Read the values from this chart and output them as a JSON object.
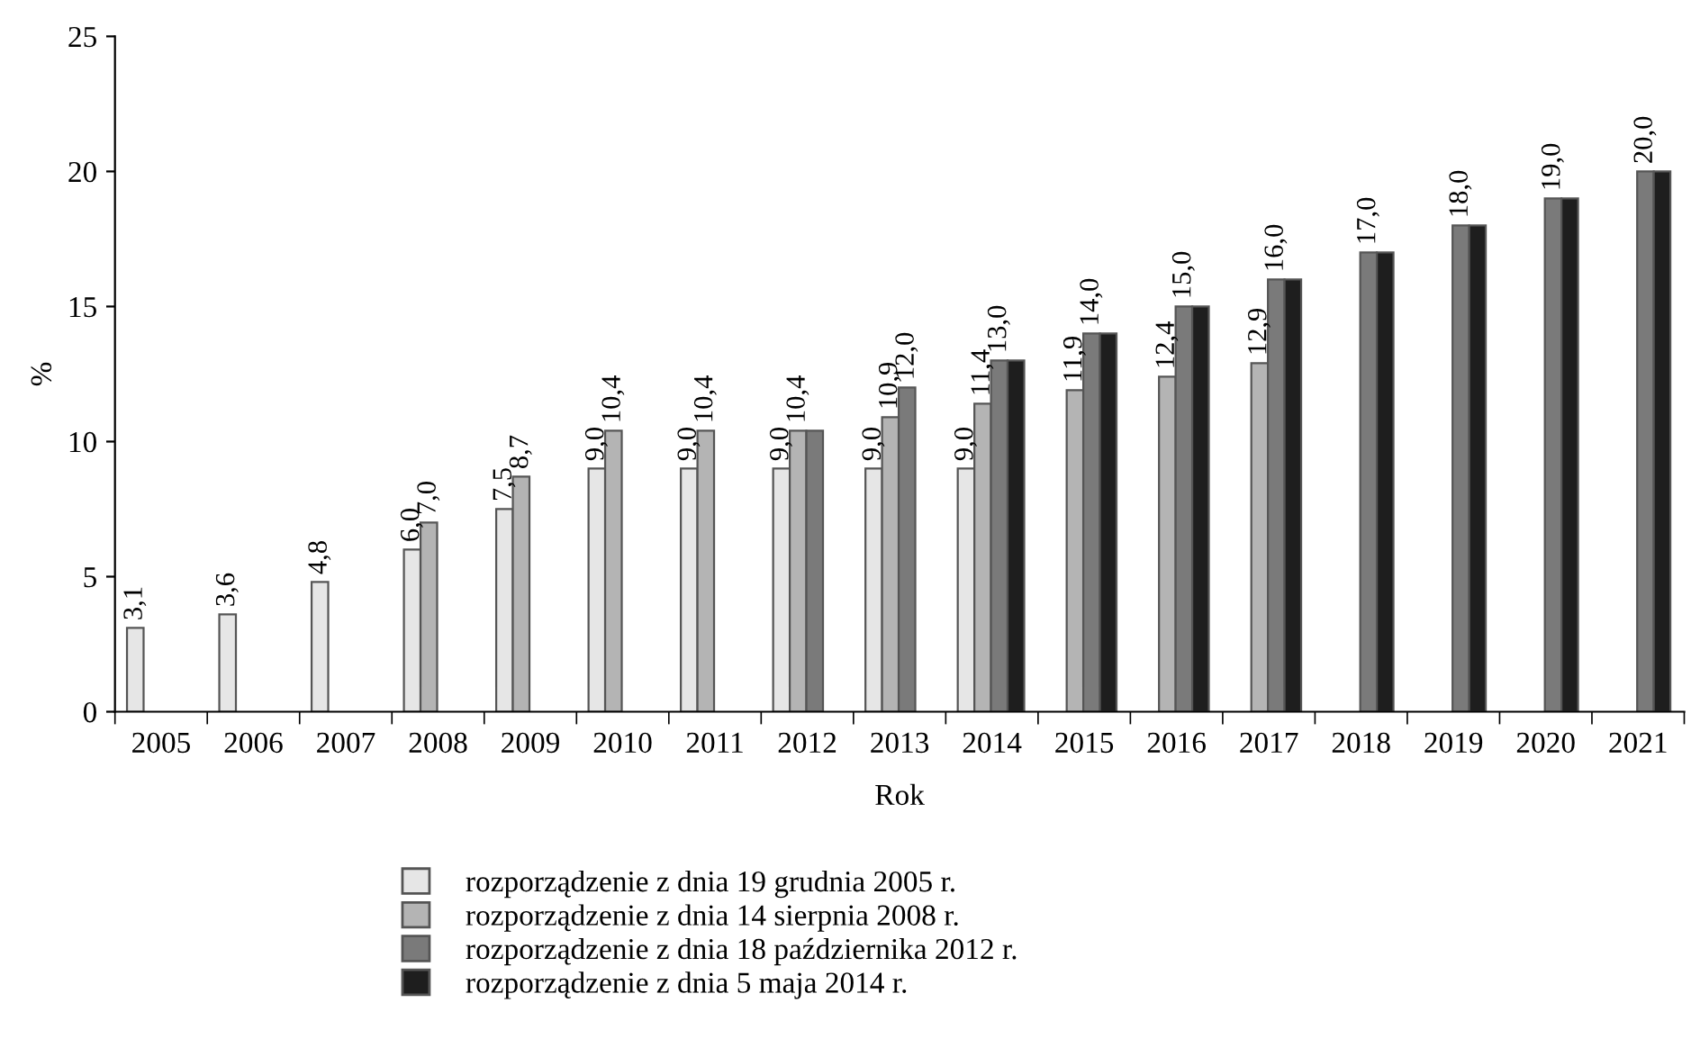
{
  "chart_data": {
    "type": "bar",
    "xlabel": "Rok",
    "ylabel": "%",
    "categories": [
      "2005",
      "2006",
      "2007",
      "2008",
      "2009",
      "2010",
      "2011",
      "2012",
      "2013",
      "2014",
      "2015",
      "2016",
      "2017",
      "2018",
      "2019",
      "2020",
      "2021"
    ],
    "ylim": [
      0,
      25
    ],
    "yticks": [
      0,
      5,
      10,
      15,
      20,
      25
    ],
    "grid": false,
    "legend": "bottom",
    "series": [
      {
        "name": "rozporządzenie z dnia 19 grudnia 2005 r.",
        "color": "#e6e6e6",
        "values": [
          3.1,
          3.6,
          4.8,
          6.0,
          7.5,
          9.0,
          9.0,
          9.0,
          9.0,
          9.0,
          null,
          null,
          null,
          null,
          null,
          null,
          null
        ],
        "value_labels": [
          "3,1",
          "3,6",
          "4,8",
          "6,0",
          "7,5",
          "9,0",
          "9,0",
          "9,0",
          "9,0",
          "9,0",
          null,
          null,
          null,
          null,
          null,
          null,
          null
        ]
      },
      {
        "name": "rozporządzenie z dnia 14 sierpnia 2008 r.",
        "color": "#b4b4b4",
        "values": [
          null,
          null,
          null,
          7.0,
          8.7,
          10.4,
          10.4,
          10.4,
          10.9,
          11.4,
          11.9,
          12.4,
          12.9,
          null,
          null,
          null,
          null
        ],
        "value_labels": [
          null,
          null,
          null,
          "7,0",
          "8,7",
          "10,4",
          "10,4",
          "10,4",
          "10,9",
          "11,4",
          "11,9",
          "12,4",
          "12,9",
          null,
          null,
          null,
          null
        ]
      },
      {
        "name": "rozporządzenie z dnia 18 października 2012 r.",
        "color": "#7a7a7a",
        "values": [
          null,
          null,
          null,
          null,
          null,
          null,
          null,
          10.4,
          12.0,
          13.0,
          14.0,
          15.0,
          16.0,
          17.0,
          18.0,
          19.0,
          20.0
        ],
        "value_labels": [
          null,
          null,
          null,
          null,
          null,
          null,
          null,
          null,
          "12,0",
          "13,0",
          "14,0",
          "15,0",
          "16,0",
          "17,0",
          "18,0",
          "19,0",
          "20,0"
        ]
      },
      {
        "name": "rozporządzenie z dnia 5 maja 2014 r.",
        "color": "#1e1e1e",
        "values": [
          null,
          null,
          null,
          null,
          null,
          null,
          null,
          null,
          null,
          13.0,
          14.0,
          15.0,
          16.0,
          17.0,
          18.0,
          19.0,
          20.0
        ],
        "value_labels": [
          null,
          null,
          null,
          null,
          null,
          null,
          null,
          null,
          null,
          null,
          null,
          null,
          null,
          null,
          null,
          null,
          null
        ]
      }
    ]
  }
}
